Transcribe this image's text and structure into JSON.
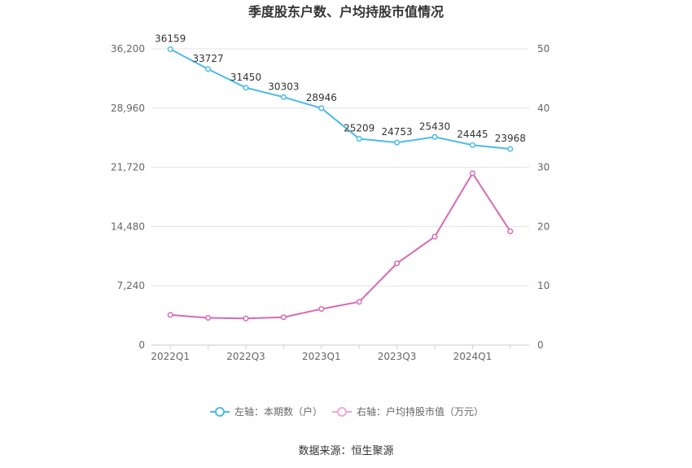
{
  "chart_data": {
    "type": "line",
    "title": "季度股东户数、户均持股市值情况",
    "x": [
      "2022Q1",
      "2022Q2",
      "2022Q3",
      "2022Q4",
      "2023Q1",
      "2023Q2",
      "2023Q3",
      "2023Q4",
      "2024Q1",
      "2024Q2"
    ],
    "x_tick_labels": [
      "2022Q1",
      "2022Q3",
      "2023Q1",
      "2023Q3",
      "2024Q1"
    ],
    "left_axis": {
      "ylim": [
        0,
        36200
      ],
      "ticks": [
        "0",
        "7,240",
        "14,480",
        "21,720",
        "28,960",
        "36,200"
      ]
    },
    "right_axis": {
      "ylim": [
        0,
        50
      ],
      "ticks": [
        "0",
        "10",
        "20",
        "30",
        "40",
        "50"
      ]
    },
    "grid": true,
    "legend_position": "bottom",
    "series": [
      {
        "name": "左轴：本期数（户）",
        "axis": "left",
        "color": "#4cbbe8",
        "values": [
          36159,
          33727,
          31450,
          30303,
          28946,
          25209,
          24753,
          25430,
          24445,
          23968
        ],
        "labels": [
          "36159",
          "33727",
          "31450",
          "30303",
          "28946",
          "25209",
          "24753",
          "25430",
          "24445",
          "23968"
        ]
      },
      {
        "name": "右轴：户均持股市值（万元）",
        "axis": "right",
        "color": "#d66ab5",
        "values": [
          5.1,
          4.6,
          4.5,
          4.7,
          6.1,
          7.3,
          13.8,
          18.3,
          29.0,
          19.2
        ]
      }
    ]
  },
  "source": "数据来源：恒生聚源"
}
